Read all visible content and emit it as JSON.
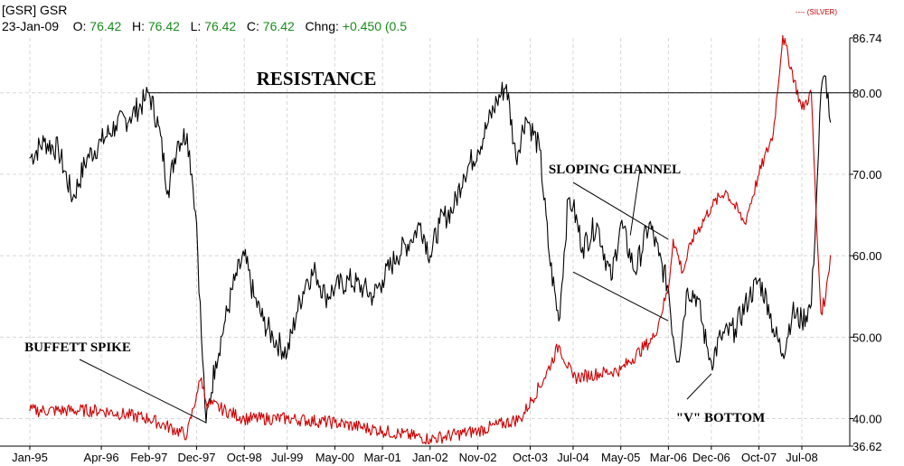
{
  "header": {
    "symbol": "[GSR] GSR",
    "date": "23-Jan-09",
    "open_label": "O:",
    "open": "76.42",
    "high_label": "H:",
    "high": "76.42",
    "low_label": "L:",
    "low": "76.42",
    "close_label": "C:",
    "close": "76.42",
    "change_label": "Chng:",
    "change": "+0.450 (0.5"
  },
  "legend": {
    "silver": "---- (SILVER)"
  },
  "chart_data": {
    "type": "line",
    "ylim": [
      36.62,
      86.74
    ],
    "y_ticks": [
      {
        "value": 86.74,
        "label": "86.74"
      },
      {
        "value": 80,
        "label": "80.00"
      },
      {
        "value": 70,
        "label": "70.00"
      },
      {
        "value": 60,
        "label": "60.00"
      },
      {
        "value": 50,
        "label": "50.00"
      },
      {
        "value": 40,
        "label": "40.00"
      },
      {
        "value": 36.62,
        "label": "36.62"
      }
    ],
    "x_ticks": [
      "Jan-95",
      "Apr-96",
      "Feb-97",
      "Dec-97",
      "Oct-98",
      "Jul-99",
      "May-00",
      "Mar-01",
      "Jan-02",
      "Nov-02",
      "Oct-03",
      "Jul-04",
      "May-05",
      "Mar-06",
      "Dec-06",
      "Oct-07",
      "Jul-08"
    ],
    "series": [
      {
        "name": "GSR",
        "color": "#000000",
        "points": [
          [
            "Jan-95",
            72
          ],
          [
            "Apr-95",
            74
          ],
          [
            "Jul-95",
            73
          ],
          [
            "Oct-95",
            67
          ],
          [
            "Jan-96",
            72
          ],
          [
            "Apr-96",
            74
          ],
          [
            "Jul-96",
            76
          ],
          [
            "Oct-96",
            77
          ],
          [
            "Jan-97",
            79
          ],
          [
            "Feb-97",
            80
          ],
          [
            "Apr-97",
            76
          ],
          [
            "Jun-97",
            68
          ],
          [
            "Aug-97",
            74
          ],
          [
            "Oct-97",
            75
          ],
          [
            "Nov-97",
            70
          ],
          [
            "Dec-97",
            64
          ],
          [
            "Jan-98",
            50
          ],
          [
            "Feb-98",
            39.5
          ],
          [
            "Apr-98",
            47
          ],
          [
            "Jun-98",
            52
          ],
          [
            "Aug-98",
            57
          ],
          [
            "Oct-98",
            60
          ],
          [
            "Dec-98",
            55
          ],
          [
            "Feb-99",
            52
          ],
          [
            "Apr-99",
            50
          ],
          [
            "Jul-99",
            48
          ],
          [
            "Sep-99",
            53
          ],
          [
            "Nov-99",
            57
          ],
          [
            "Jan-00",
            58
          ],
          [
            "Mar-00",
            55
          ],
          [
            "May-00",
            56
          ],
          [
            "Aug-00",
            57
          ],
          [
            "Nov-00",
            56
          ],
          [
            "Jan-01",
            55
          ],
          [
            "Mar-01",
            57
          ],
          [
            "Jun-01",
            60
          ],
          [
            "Sep-01",
            62
          ],
          [
            "Nov-01",
            64
          ],
          [
            "Jan-02",
            60
          ],
          [
            "Mar-02",
            64
          ],
          [
            "Jun-02",
            66
          ],
          [
            "Aug-02",
            70
          ],
          [
            "Nov-02",
            73
          ],
          [
            "Jan-03",
            76
          ],
          [
            "Mar-03",
            79
          ],
          [
            "May-03",
            81
          ],
          [
            "Jul-03",
            72
          ],
          [
            "Sep-03",
            77
          ],
          [
            "Oct-03",
            76
          ],
          [
            "Dec-03",
            73
          ],
          [
            "Feb-04",
            60
          ],
          [
            "Apr-04",
            52
          ],
          [
            "Jun-04",
            67
          ],
          [
            "Jul-04",
            66
          ],
          [
            "Sep-04",
            61
          ],
          [
            "Dec-04",
            64
          ],
          [
            "Mar-05",
            57
          ],
          [
            "May-05",
            64
          ],
          [
            "Aug-05",
            58
          ],
          [
            "Nov-05",
            64
          ],
          [
            "Jan-06",
            60
          ],
          [
            "Mar-06",
            56
          ],
          [
            "Apr-06",
            50
          ],
          [
            "May-06",
            47
          ],
          [
            "Jul-06",
            56
          ],
          [
            "Sep-06",
            55
          ],
          [
            "Nov-06",
            49
          ],
          [
            "Dec-06",
            47
          ],
          [
            "Feb-07",
            50
          ],
          [
            "May-07",
            51
          ],
          [
            "Aug-07",
            55
          ],
          [
            "Oct-07",
            57
          ],
          [
            "Dec-07",
            54
          ],
          [
            "Jan-08",
            51
          ],
          [
            "Mar-08",
            48
          ],
          [
            "May-08",
            53
          ],
          [
            "Jul-08",
            52
          ],
          [
            "Sep-08",
            54
          ],
          [
            "Oct-08",
            66
          ],
          [
            "Nov-08",
            80
          ],
          [
            "Dec-08",
            82
          ],
          [
            "Jan-09",
            76.42
          ]
        ]
      },
      {
        "name": "SILVER",
        "color": "#cc0000",
        "points": [
          [
            "Jan-95",
            41
          ],
          [
            "Apr-96",
            41
          ],
          [
            "Feb-97",
            40
          ],
          [
            "Oct-97",
            38
          ],
          [
            "Dec-97",
            43
          ],
          [
            "Jan-98",
            45
          ],
          [
            "Feb-98",
            42
          ],
          [
            "Oct-98",
            40
          ],
          [
            "Jul-99",
            40
          ],
          [
            "May-00",
            39.5
          ],
          [
            "Mar-01",
            38.5
          ],
          [
            "Jan-02",
            37.5
          ],
          [
            "Nov-02",
            38.5
          ],
          [
            "Aug-03",
            40
          ],
          [
            "Jan-04",
            45
          ],
          [
            "Apr-04",
            49
          ],
          [
            "Jul-04",
            45
          ],
          [
            "May-05",
            46
          ],
          [
            "Dec-05",
            50
          ],
          [
            "Mar-06",
            56
          ],
          [
            "Apr-06",
            62
          ],
          [
            "Jun-06",
            58
          ],
          [
            "Aug-06",
            62
          ],
          [
            "Dec-06",
            66
          ],
          [
            "Mar-07",
            68
          ],
          [
            "Jul-07",
            64
          ],
          [
            "Oct-07",
            70
          ],
          [
            "Jan-08",
            75
          ],
          [
            "Mar-08",
            87
          ],
          [
            "Jul-08",
            78
          ],
          [
            "Sep-08",
            80
          ],
          [
            "Oct-08",
            65
          ],
          [
            "Nov-08",
            53
          ],
          [
            "Dec-08",
            55
          ],
          [
            "Jan-09",
            60
          ]
        ]
      }
    ],
    "annotations": {
      "resistance": "RESISTANCE",
      "resistance_level": 80,
      "sloping_channel": "SLOPING CHANNEL",
      "v_bottom": "\"V\" BOTTOM",
      "buffett_spike": "BUFFETT SPIKE"
    }
  }
}
